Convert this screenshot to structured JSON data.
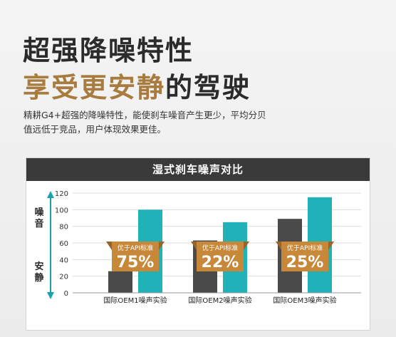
{
  "headline": {
    "line1": "超强降噪特性",
    "line2_accent": "享受更安静",
    "line2_rest": "的驾驶"
  },
  "description": "精耕G4+超强的降噪特性，能使刹车噪音产生更少，平均分贝值远低于竞品，用户体现效果更佳。",
  "colors": {
    "accent": "#a87c3e",
    "bar_dark": "#4a4a4a",
    "bar_teal": "#20b2b8",
    "badge": "#c8883a",
    "header": "#3a3a3a"
  },
  "chart_data": {
    "type": "bar",
    "title": "湿式刹车噪声对比",
    "ylabel_top": "噪音",
    "ylabel_bottom": "安静",
    "ylim": [
      0,
      120
    ],
    "yticks": [
      "0",
      "20",
      "40",
      "60",
      "80",
      "100",
      "120"
    ],
    "grid": true,
    "categories": [
      "国际OEM1噪声实验",
      "国际OEM2噪声实验",
      "国际OEM3噪声实验"
    ],
    "series": [
      {
        "values": [
          26,
          63,
          89
        ]
      },
      {
        "values": [
          100,
          85,
          115
        ]
      }
    ],
    "annotations": [
      {
        "label": "优于API标准",
        "value": "75%"
      },
      {
        "label": "优于API标准",
        "value": "22%"
      },
      {
        "label": "优于API标准",
        "value": "25%"
      }
    ]
  }
}
